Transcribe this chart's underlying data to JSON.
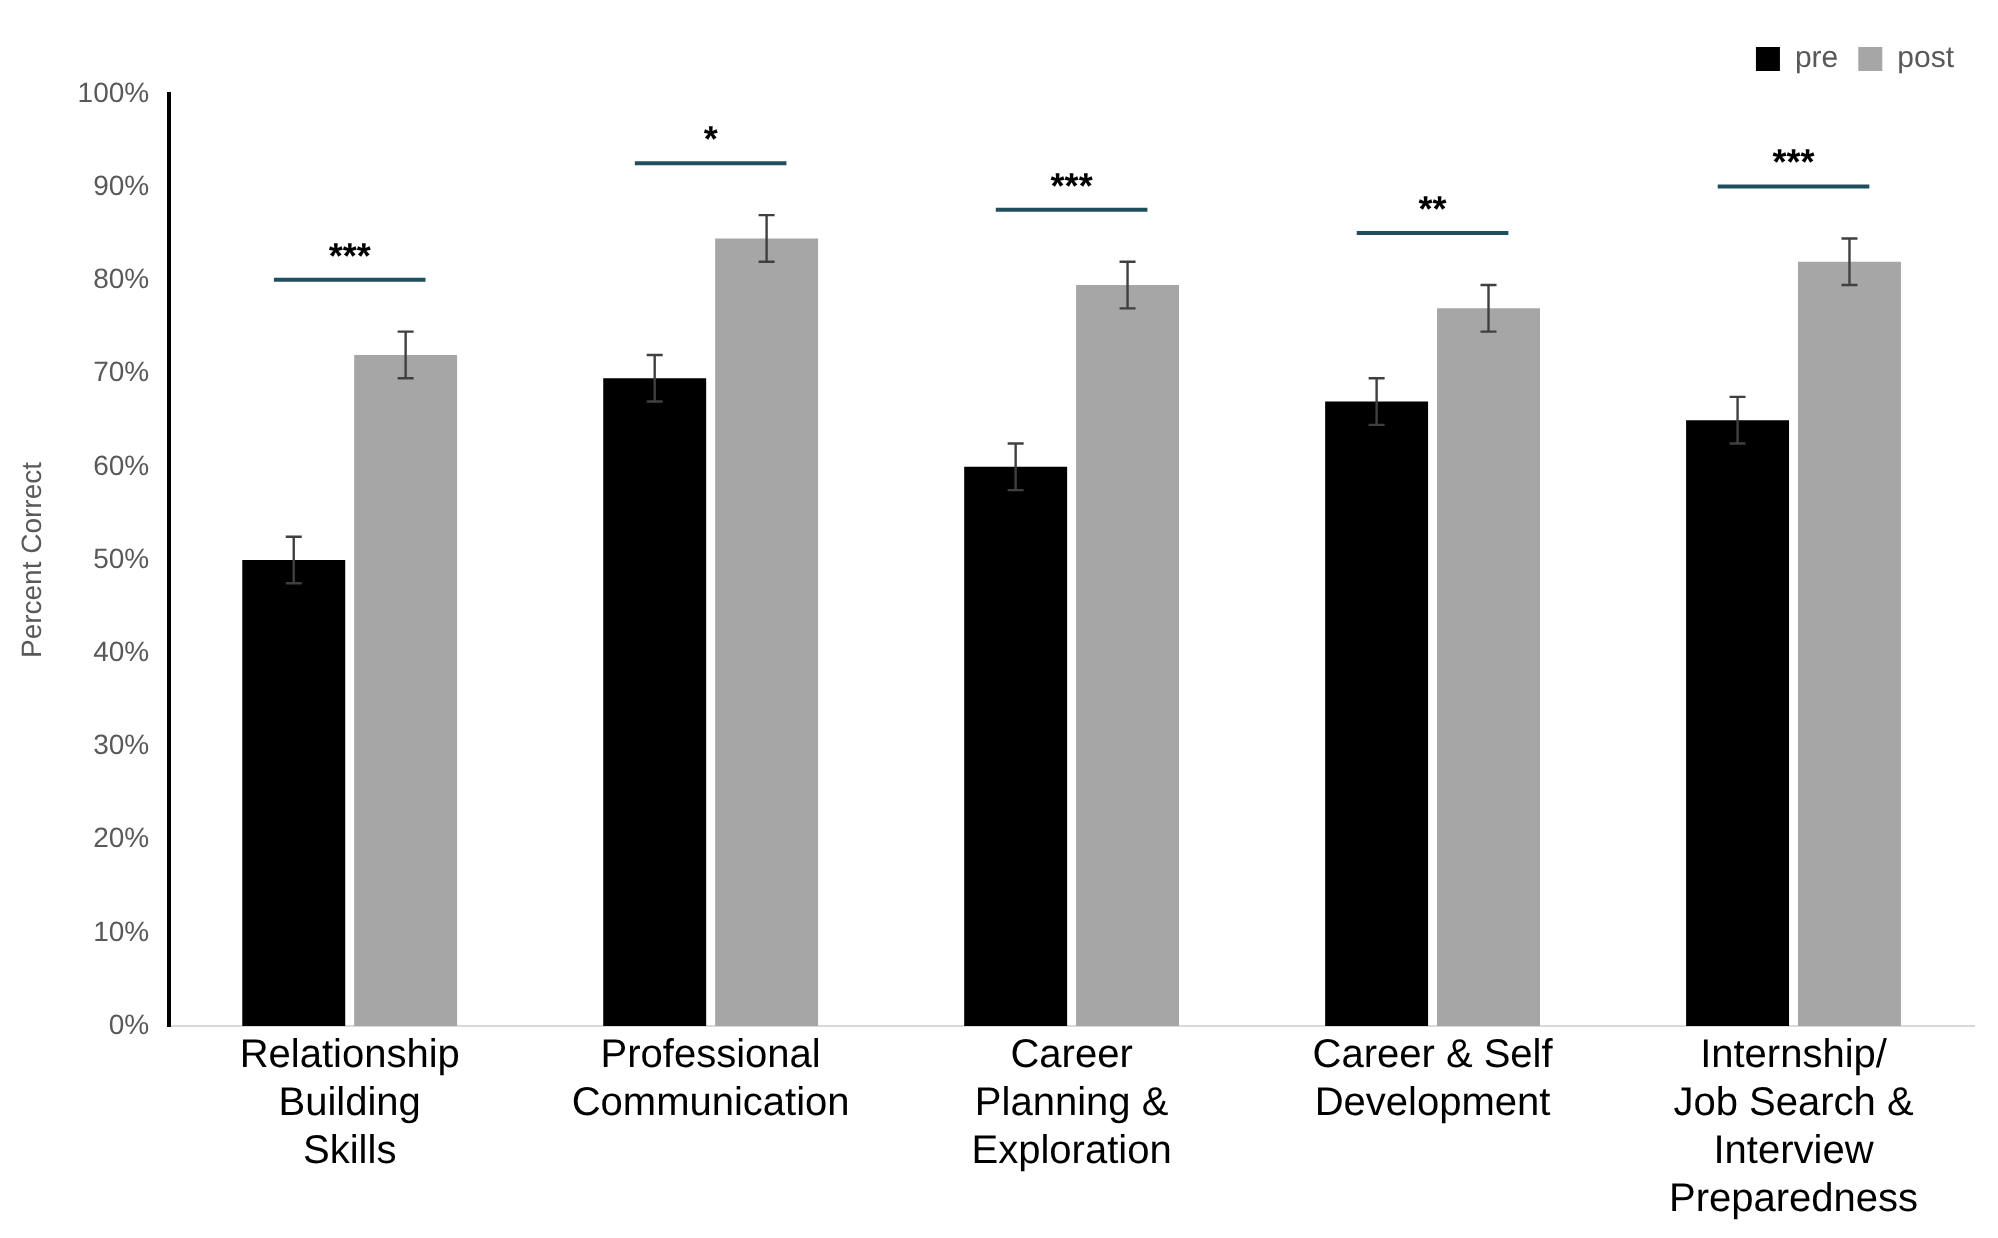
{
  "chart_data": {
    "type": "bar",
    "ylabel": "Percent Correct",
    "categories": [
      "Relationship Building Skills",
      "Professional Communication",
      "Career Planning & Exploration",
      "Career & Self Development",
      "Internship/ Job Search & Interview Preparedness"
    ],
    "series": [
      {
        "name": "pre",
        "color": "#000000",
        "values": [
          50,
          69.5,
          60,
          67,
          65
        ],
        "errors": [
          2.5,
          2.5,
          2.5,
          2.5,
          2.5
        ]
      },
      {
        "name": "post",
        "color": "#a6a6a6",
        "values": [
          72,
          84.5,
          79.5,
          77,
          82
        ],
        "errors": [
          2.5,
          2.5,
          2.5,
          2.5,
          2.5
        ]
      }
    ],
    "ylim": [
      0,
      100
    ],
    "yticks": [
      {
        "value": 0,
        "label": "0%"
      },
      {
        "value": 10,
        "label": "10%"
      },
      {
        "value": 20,
        "label": "20%"
      },
      {
        "value": 30,
        "label": "30%"
      },
      {
        "value": 40,
        "label": "40%"
      },
      {
        "value": 50,
        "label": "50%"
      },
      {
        "value": 60,
        "label": "60%"
      },
      {
        "value": 70,
        "label": "70%"
      },
      {
        "value": 80,
        "label": "80%"
      },
      {
        "value": 90,
        "label": "90%"
      },
      {
        "value": 100,
        "label": "100%"
      }
    ],
    "annotations": [
      "***",
      "*",
      "***",
      "**",
      "***"
    ],
    "grid": false,
    "legend": "top right"
  }
}
